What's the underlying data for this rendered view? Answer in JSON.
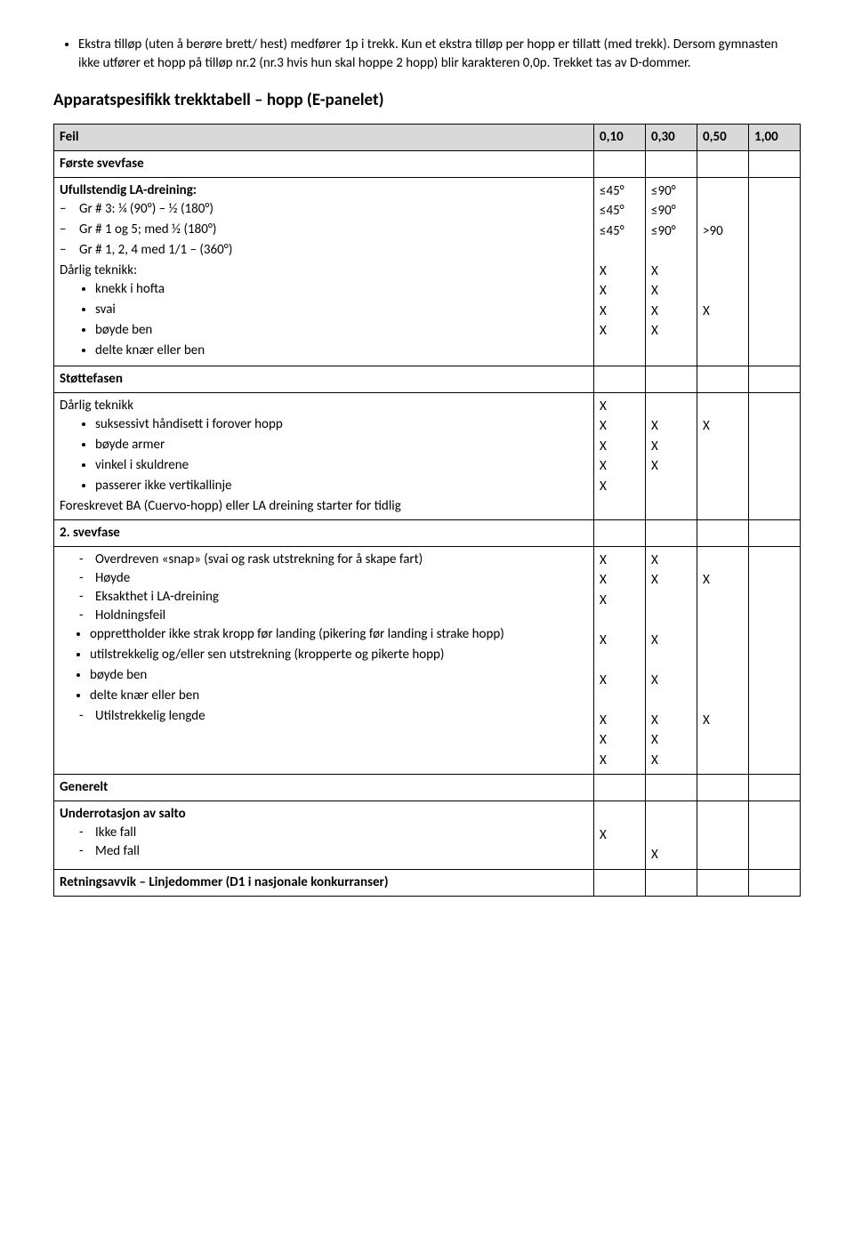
{
  "intro": {
    "text": "Ekstra tilløp (uten å berøre brett/ hest) medfører 1p i trekk. Kun et ekstra tilløp per hopp er tillatt (med trekk). Dersom gymnasten ikke utfører et hopp på tilløp nr.2 (nr.3 hvis hun skal hoppe 2 hopp) blir karakteren 0,0p. Trekket tas av D-dommer."
  },
  "title": "Apparatspesifikk trekktabell – hopp (E-panelet)",
  "header": {
    "feil": "Feil",
    "c1": "0,10",
    "c2": "0,30",
    "c3": "0,50",
    "c4": "1,00"
  },
  "section1": {
    "label": "Første svevfase",
    "groupLabel": "Ufullstendig LA-dreining:",
    "items": [
      "Gr # 3: ¼ (90°) – ½ (180°)",
      "Gr # 1 og 5; med ½ (180°)",
      "Gr # 1, 2, 4 med 1/1 – (360°)"
    ],
    "teknikkLabel": "Dårlig teknikk:",
    "teknikkItems": [
      "knekk i hofta",
      "svai",
      "bøyde ben",
      "delte knær eller ben"
    ],
    "col1": [
      "≤45°",
      "≤45°",
      "≤45°",
      "",
      "X",
      "X",
      "X",
      "X"
    ],
    "col2": [
      "≤90°",
      "≤90°",
      "≤90°",
      "",
      "X",
      "X",
      "X",
      "X"
    ],
    "col3": [
      "",
      "",
      ">90",
      "",
      "",
      "",
      "X",
      ""
    ]
  },
  "section2": {
    "label": "Støttefasen",
    "groupLabel": "Dårlig teknikk",
    "items": [
      "suksessivt håndisett i forover hopp",
      "bøyde armer",
      "vinkel i skuldrene",
      "passerer ikke vertikallinje"
    ],
    "extra": "Foreskrevet BA (Cuervo-hopp) eller LA dreining starter for tidlig",
    "col1": [
      "X",
      "X",
      "X",
      "X",
      "X"
    ],
    "col2": [
      "",
      "X",
      "X",
      "X",
      ""
    ],
    "col3": [
      "",
      "X",
      "",
      "",
      ""
    ]
  },
  "section3": {
    "label": "2. svevfase",
    "items": [
      "Overdreven «snap» (svai og rask utstrekning for å skape fart)",
      "Høyde",
      "Eksakthet i LA-dreining",
      "Holdningsfeil"
    ],
    "subItems": [
      "opprettholder ikke strak kropp før landing (pikering før landing i strake hopp)",
      "utilstrekkelig og/eller sen utstrekning (kropperte og pikerte hopp)",
      "bøyde ben",
      "delte knær eller ben"
    ],
    "lastItem": "Utilstrekkelig lengde",
    "col1": [
      "X",
      "X",
      "X",
      "",
      "X",
      "X",
      "X",
      "X",
      "X"
    ],
    "col2": [
      "X",
      "X",
      "",
      "",
      "X",
      "X",
      "X",
      "X",
      "X"
    ],
    "col3": [
      "",
      "X",
      "",
      "",
      "",
      "",
      "X",
      "",
      ""
    ]
  },
  "section4": {
    "label": "Generelt",
    "groupLabel": "Underrotasjon av salto",
    "items": [
      "Ikke fall",
      "Med fall"
    ],
    "col1": [
      "X",
      ""
    ],
    "col2": [
      "",
      "X"
    ]
  },
  "footer": {
    "label": "Retningsavvik – Linjedommer (D1 i nasjonale konkurranser)"
  }
}
